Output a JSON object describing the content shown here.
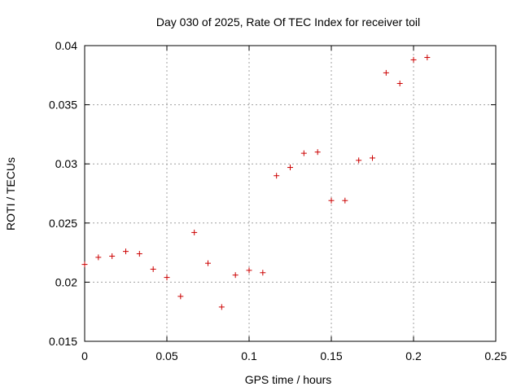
{
  "chart_data": {
    "type": "scatter",
    "title": "Day 030 of 2025, Rate Of TEC Index for receiver toil",
    "xlabel": "GPS time / hours",
    "ylabel": "ROTI / TECUs",
    "xlim": [
      0,
      0.25
    ],
    "ylim": [
      0.015,
      0.04
    ],
    "x_ticks": [
      0,
      0.05,
      0.1,
      0.15,
      0.2,
      0.25
    ],
    "y_ticks": [
      0.015,
      0.02,
      0.025,
      0.03,
      0.035,
      0.04
    ],
    "x_tick_labels": [
      "0",
      "0.05",
      "0.1",
      "0.15",
      "0.2",
      "0.25"
    ],
    "y_tick_labels": [
      "0.015",
      "0.02",
      "0.025",
      "0.03",
      "0.035",
      "0.04"
    ],
    "grid": true,
    "marker": "+",
    "color": "#cc0000",
    "series": [
      {
        "name": "ROTI",
        "x": [
          0,
          0.00833,
          0.01667,
          0.025,
          0.03333,
          0.04167,
          0.05,
          0.05833,
          0.06667,
          0.075,
          0.08333,
          0.09167,
          0.1,
          0.10833,
          0.11667,
          0.125,
          0.13333,
          0.14167,
          0.15,
          0.15833,
          0.16667,
          0.175,
          0.18333,
          0.19167,
          0.2,
          0.20833
        ],
        "y": [
          0.0215,
          0.0221,
          0.0222,
          0.0226,
          0.0224,
          0.0211,
          0.0204,
          0.0188,
          0.0242,
          0.0216,
          0.0179,
          0.0206,
          0.021,
          0.0208,
          0.029,
          0.0297,
          0.0309,
          0.031,
          0.0269,
          0.0269,
          0.0303,
          0.0305,
          0.0377,
          0.0368,
          0.0388,
          0.039
        ]
      }
    ]
  }
}
